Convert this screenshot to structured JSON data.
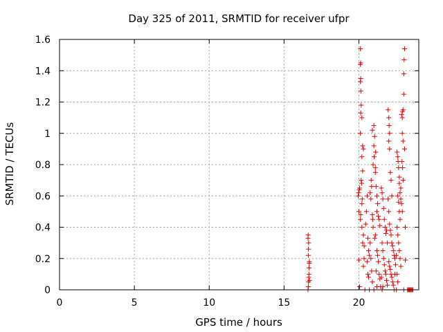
{
  "chart_data": {
    "type": "scatter",
    "title": "Day 325 of 2011, SRMTID for receiver ufpr",
    "xlabel": "GPS time / hours",
    "ylabel": "SRMTID / TECUs",
    "xlim": [
      0,
      24
    ],
    "ylim": [
      0,
      1.6
    ],
    "x_ticks": [
      0,
      5,
      10,
      15,
      20
    ],
    "x_tick_labels": [
      "0",
      "5",
      "10",
      "15",
      "20"
    ],
    "y_ticks": [
      0,
      0.2,
      0.4,
      0.6,
      0.8,
      1,
      1.2,
      1.4,
      1.6
    ],
    "y_tick_labels": [
      "0",
      "0.2",
      "0.4",
      "0.6",
      "0.8",
      "1",
      "1.2",
      "1.4",
      "1.6"
    ],
    "grid": true,
    "marker": "+",
    "series": [
      {
        "name": "SRMTID",
        "color": "#dd0000",
        "points": [
          [
            16.6,
            0.0
          ],
          [
            16.62,
            0.02
          ],
          [
            16.63,
            0.05
          ],
          [
            16.65,
            0.08
          ],
          [
            16.66,
            0.1
          ],
          [
            16.67,
            0.14
          ],
          [
            16.68,
            0.17
          ],
          [
            16.69,
            0.18
          ],
          [
            16.62,
            0.22
          ],
          [
            16.63,
            0.26
          ],
          [
            16.64,
            0.3
          ],
          [
            16.6,
            0.33
          ],
          [
            16.61,
            0.35
          ],
          [
            16.7,
            0.06
          ],
          [
            19.95,
            0.6
          ],
          [
            20.0,
            0.5
          ],
          [
            19.98,
            0.62
          ],
          [
            20.02,
            0.64
          ],
          [
            20.05,
            0.65
          ],
          [
            20.1,
            0.45
          ],
          [
            20.12,
            0.48
          ],
          [
            20.15,
            0.7
          ],
          [
            20.18,
            0.68
          ],
          [
            20.2,
            0.4
          ],
          [
            20.0,
            0.19
          ],
          [
            20.05,
            0.02
          ],
          [
            20.1,
            1.0
          ],
          [
            20.12,
            1.13
          ],
          [
            20.15,
            1.18
          ],
          [
            20.13,
            1.27
          ],
          [
            20.1,
            1.33
          ],
          [
            20.12,
            1.35
          ],
          [
            20.1,
            1.44
          ],
          [
            20.12,
            1.45
          ],
          [
            20.1,
            1.54
          ],
          [
            20.2,
            1.1
          ],
          [
            20.25,
            0.92
          ],
          [
            20.3,
            0.9
          ],
          [
            20.2,
            0.85
          ],
          [
            20.25,
            0.76
          ],
          [
            20.22,
            0.58
          ],
          [
            20.2,
            0.55
          ],
          [
            20.3,
            0.35
          ],
          [
            20.25,
            0.3
          ],
          [
            20.35,
            0.28
          ],
          [
            20.4,
            0.0
          ],
          [
            20.3,
            0.15
          ],
          [
            20.35,
            0.2
          ],
          [
            20.45,
            0.42
          ],
          [
            20.5,
            0.5
          ],
          [
            20.55,
            0.6
          ],
          [
            20.6,
            0.33
          ],
          [
            20.65,
            0.25
          ],
          [
            20.7,
            0.22
          ],
          [
            20.75,
            0.62
          ],
          [
            20.8,
            0.58
          ],
          [
            20.82,
            0.7
          ],
          [
            20.85,
            0.66
          ],
          [
            20.9,
            0.48
          ],
          [
            20.92,
            0.45
          ],
          [
            20.95,
            0.4
          ],
          [
            20.6,
            0.1
          ],
          [
            20.65,
            0.08
          ],
          [
            20.7,
            0.0
          ],
          [
            20.55,
            0.18
          ],
          [
            20.75,
            0.3
          ],
          [
            20.8,
            0.2
          ],
          [
            20.85,
            0.12
          ],
          [
            20.9,
            0.05
          ],
          [
            20.9,
            1.02
          ],
          [
            21.0,
            1.05
          ],
          [
            21.05,
            0.98
          ],
          [
            20.95,
            0.8
          ],
          [
            21.0,
            0.92
          ],
          [
            21.02,
            0.85
          ],
          [
            21.1,
            0.78
          ],
          [
            21.1,
            0.75
          ],
          [
            21.12,
            0.88
          ],
          [
            21.15,
            0.66
          ],
          [
            21.2,
            0.6
          ],
          [
            21.25,
            0.55
          ],
          [
            21.2,
            0.5
          ],
          [
            21.3,
            0.47
          ],
          [
            21.35,
            0.45
          ],
          [
            21.4,
            0.41
          ],
          [
            21.05,
            0.33
          ],
          [
            21.1,
            0.35
          ],
          [
            21.2,
            0.25
          ],
          [
            21.25,
            0.22
          ],
          [
            21.3,
            0.18
          ],
          [
            21.15,
            0.12
          ],
          [
            21.35,
            0.1
          ],
          [
            21.4,
            0.07
          ],
          [
            21.45,
            0.02
          ],
          [
            21.0,
            0.0
          ],
          [
            21.2,
            0.02
          ],
          [
            21.5,
            0.65
          ],
          [
            21.55,
            0.62
          ],
          [
            21.6,
            0.58
          ],
          [
            21.65,
            0.52
          ],
          [
            21.7,
            0.45
          ],
          [
            21.75,
            0.4
          ],
          [
            21.8,
            0.36
          ],
          [
            21.85,
            0.38
          ],
          [
            21.9,
            0.3
          ],
          [
            21.55,
            0.3
          ],
          [
            21.6,
            0.25
          ],
          [
            21.65,
            0.2
          ],
          [
            21.7,
            0.16
          ],
          [
            21.75,
            0.12
          ],
          [
            21.8,
            0.1
          ],
          [
            21.85,
            0.06
          ],
          [
            21.9,
            0.03
          ],
          [
            21.5,
            0.08
          ],
          [
            21.55,
            0.0
          ],
          [
            21.6,
            0.02
          ],
          [
            21.95,
            1.15
          ],
          [
            22.0,
            1.1
          ],
          [
            22.02,
            1.05
          ],
          [
            22.05,
            1.0
          ],
          [
            22.0,
            0.95
          ],
          [
            22.05,
            0.9
          ],
          [
            22.1,
            0.75
          ],
          [
            22.15,
            0.7
          ],
          [
            22.2,
            0.6
          ],
          [
            21.95,
            0.58
          ],
          [
            22.0,
            0.5
          ],
          [
            22.05,
            0.42
          ],
          [
            22.1,
            0.38
          ],
          [
            22.15,
            0.35
          ],
          [
            22.2,
            0.3
          ],
          [
            22.25,
            0.28
          ],
          [
            22.3,
            0.25
          ],
          [
            22.35,
            0.22
          ],
          [
            22.4,
            0.2
          ],
          [
            22.0,
            0.18
          ],
          [
            22.05,
            0.15
          ],
          [
            22.1,
            0.13
          ],
          [
            22.15,
            0.1
          ],
          [
            22.2,
            0.08
          ],
          [
            22.25,
            0.05
          ],
          [
            22.3,
            0.03
          ],
          [
            22.35,
            0.0
          ],
          [
            22.4,
            0.1
          ],
          [
            22.45,
            0.16
          ],
          [
            22.5,
            0.22
          ],
          [
            22.55,
            0.88
          ],
          [
            22.6,
            0.85
          ],
          [
            22.62,
            0.82
          ],
          [
            22.65,
            0.78
          ],
          [
            22.7,
            0.72
          ],
          [
            22.7,
            0.68
          ],
          [
            22.75,
            0.62
          ],
          [
            22.8,
            0.58
          ],
          [
            22.6,
            0.6
          ],
          [
            22.65,
            0.56
          ],
          [
            22.7,
            0.5
          ],
          [
            22.75,
            0.45
          ],
          [
            22.55,
            0.4
          ],
          [
            22.6,
            0.35
          ],
          [
            22.65,
            0.3
          ],
          [
            22.7,
            0.25
          ],
          [
            22.75,
            0.2
          ],
          [
            22.8,
            0.15
          ],
          [
            22.55,
            0.1
          ],
          [
            22.6,
            0.05
          ],
          [
            22.5,
            0.0
          ],
          [
            22.8,
            0.65
          ],
          [
            22.85,
            1.12
          ],
          [
            22.9,
            1.1
          ],
          [
            22.92,
            1.14
          ],
          [
            22.95,
            1.15
          ],
          [
            23.0,
            1.25
          ],
          [
            23.0,
            1.38
          ],
          [
            23.02,
            1.47
          ],
          [
            23.05,
            1.54
          ],
          [
            22.9,
            1.0
          ],
          [
            22.95,
            0.95
          ],
          [
            23.05,
            0.9
          ],
          [
            22.88,
            0.82
          ],
          [
            22.92,
            0.78
          ],
          [
            22.95,
            0.7
          ],
          [
            22.85,
            0.55
          ],
          [
            22.9,
            0.5
          ],
          [
            23.1,
            0.4
          ],
          [
            23.1,
            0.19
          ],
          [
            23.0,
            0.0
          ],
          [
            23.25,
            0.0
          ],
          [
            23.3,
            0.0
          ],
          [
            23.35,
            0.0
          ],
          [
            23.4,
            0.0
          ],
          [
            23.45,
            0.0
          ],
          [
            23.5,
            0.0
          ],
          [
            23.55,
            0.0
          ],
          [
            23.6,
            0.0
          ]
        ]
      }
    ]
  }
}
